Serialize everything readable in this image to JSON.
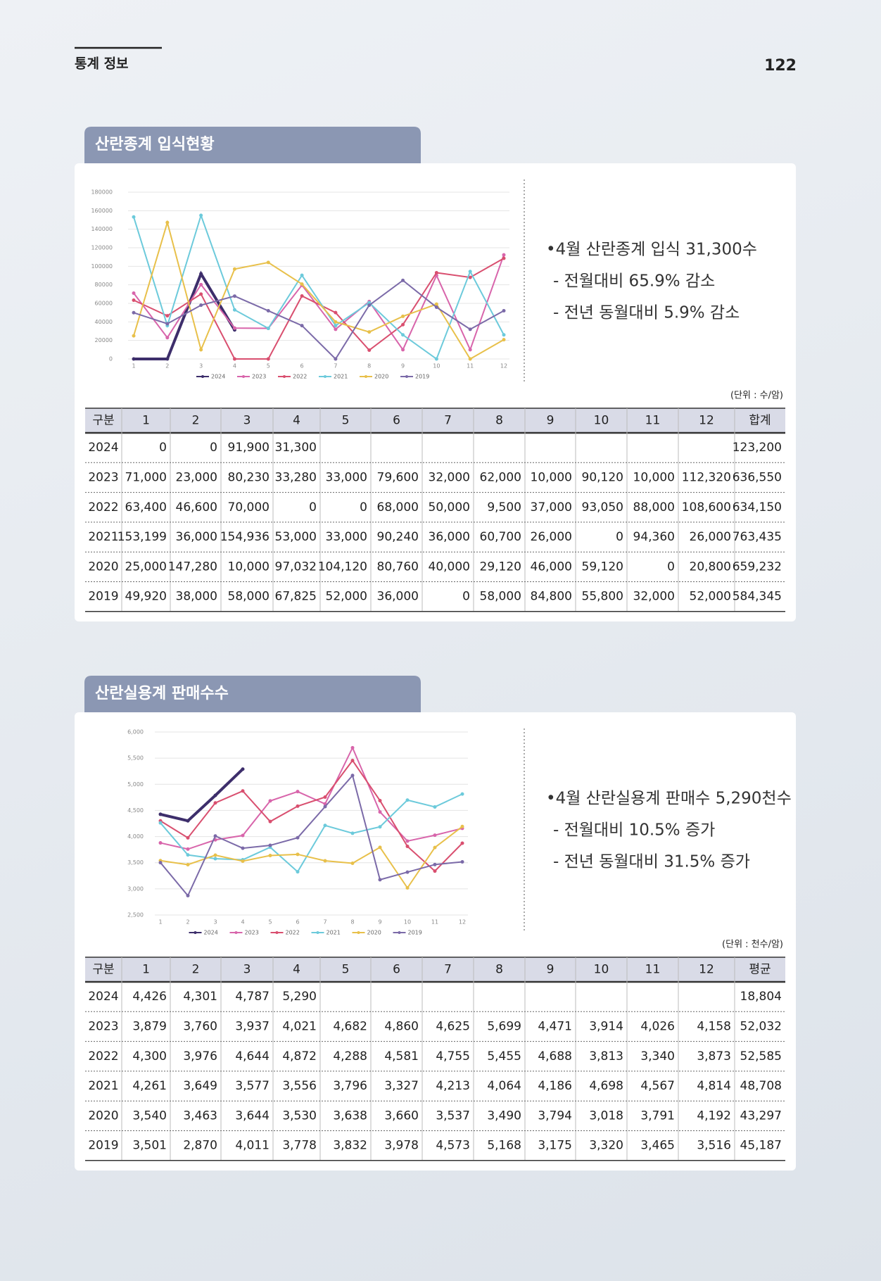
{
  "header": {
    "section": "통계 정보",
    "page": "122"
  },
  "sections": [
    {
      "title": "산란종계 입식현황",
      "bullets": [
        "•4월 산란종계 입식 31,300수",
        "- 전월대비 65.9% 감소",
        "- 전년 동월대비 5.9% 감소"
      ],
      "unit": "(단위 : 수/암)",
      "table": {
        "first_header": "구분",
        "last_header": "합계"
      },
      "chart": {
        "type": "line",
        "categories": [
          "1",
          "2",
          "3",
          "4",
          "5",
          "6",
          "7",
          "8",
          "9",
          "10",
          "11",
          "12"
        ],
        "ylim": [
          0,
          180000
        ],
        "yticks": [
          0,
          20000,
          40000,
          60000,
          80000,
          100000,
          120000,
          140000,
          160000,
          180000
        ],
        "grid": true,
        "series": [
          {
            "name": "2024",
            "color": "#3d2e6b",
            "values": [
              0,
              0,
              91900,
              31300,
              null,
              null,
              null,
              null,
              null,
              null,
              null,
              null
            ],
            "value_labels": [
              "0",
              "0",
              "91,900",
              "31,300",
              null,
              null,
              null,
              null,
              null,
              null,
              null,
              null
            ],
            "total": "123,200"
          },
          {
            "name": "2023",
            "color": "#d865ab",
            "values": [
              71000,
              23000,
              80230,
              33280,
              33000,
              79600,
              32000,
              62000,
              10000,
              90120,
              10000,
              112320
            ],
            "value_labels": [
              "71,000",
              "23,000",
              "80,230",
              "33,280",
              "33,000",
              "79,600",
              "32,000",
              "62,000",
              "10,000",
              "90,120",
              "10,000",
              "112,320"
            ],
            "total": "636,550"
          },
          {
            "name": "2022",
            "color": "#d94f6f",
            "values": [
              63400,
              46600,
              70000,
              0,
              0,
              68000,
              50000,
              9500,
              37000,
              93050,
              88000,
              108600
            ],
            "value_labels": [
              "63,400",
              "46,600",
              "70,000",
              "0",
              "0",
              "68,000",
              "50,000",
              "9,500",
              "37,000",
              "93,050",
              "88,000",
              "108,600"
            ],
            "total": "634,150"
          },
          {
            "name": "2021",
            "color": "#6ccadb",
            "values": [
              153199,
              36000,
              154936,
              53000,
              33000,
              90240,
              36000,
              60700,
              26000,
              0,
              94360,
              26000
            ],
            "value_labels": [
              "153,199",
              "36,000",
              "154,936",
              "53,000",
              "33,000",
              "90,240",
              "36,000",
              "60,700",
              "26,000",
              "0",
              "94,360",
              "26,000"
            ],
            "total": "763,435"
          },
          {
            "name": "2020",
            "color": "#e8c04a",
            "values": [
              25000,
              147280,
              10000,
              97032,
              104120,
              80760,
              40000,
              29120,
              46000,
              59120,
              0,
              20800
            ],
            "value_labels": [
              "25,000",
              "147,280",
              "10,000",
              "97,032",
              "104,120",
              "80,760",
              "40,000",
              "29,120",
              "46,000",
              "59,120",
              "0",
              "20,800"
            ],
            "total": "659,232"
          },
          {
            "name": "2019",
            "color": "#7b6aa8",
            "values": [
              49920,
              38000,
              58000,
              67825,
              52000,
              36000,
              0,
              58000,
              84800,
              55800,
              32000,
              52000
            ],
            "value_labels": [
              "49,920",
              "38,000",
              "58,000",
              "67,825",
              "52,000",
              "36,000",
              "0",
              "58,000",
              "84,800",
              "55,800",
              "32,000",
              "52,000"
            ],
            "total": "584,345"
          }
        ]
      }
    },
    {
      "title": "산란실용계 판매수수",
      "bullets": [
        "•4월 산란실용계 판매수 5,290천수",
        "- 전월대비 10.5% 증가",
        "- 전년 동월대비 31.5% 증가"
      ],
      "unit": "(단위 : 천수/암)",
      "table": {
        "first_header": "구분",
        "last_header": "평균"
      },
      "chart": {
        "type": "line",
        "categories": [
          "1",
          "2",
          "3",
          "4",
          "5",
          "6",
          "7",
          "8",
          "9",
          "10",
          "11",
          "12"
        ],
        "ylim": [
          2500,
          6000
        ],
        "yticks": [
          {
            "value": 2500,
            "label": "2,500"
          },
          {
            "value": 3000,
            "label": "3,000"
          },
          {
            "value": 3500,
            "label": "3,500"
          },
          {
            "value": 4000,
            "label": "4,000"
          },
          {
            "value": 4500,
            "label": "4,500"
          },
          {
            "value": 5000,
            "label": "5,000"
          },
          {
            "value": 5500,
            "label": "5,500"
          },
          {
            "value": 6000,
            "label": "6,000"
          }
        ],
        "grid": true,
        "series": [
          {
            "name": "2024",
            "color": "#3d2e6b",
            "values": [
              4426,
              4301,
              4787,
              5290,
              null,
              null,
              null,
              null,
              null,
              null,
              null,
              null
            ],
            "value_labels": [
              "4,426",
              "4,301",
              "4,787",
              "5,290",
              null,
              null,
              null,
              null,
              null,
              null,
              null,
              null
            ],
            "total": "18,804"
          },
          {
            "name": "2023",
            "color": "#d865ab",
            "values": [
              3879,
              3760,
              3937,
              4021,
              4682,
              4860,
              4625,
              5699,
              4471,
              3914,
              4026,
              4158
            ],
            "value_labels": [
              "3,879",
              "3,760",
              "3,937",
              "4,021",
              "4,682",
              "4,860",
              "4,625",
              "5,699",
              "4,471",
              "3,914",
              "4,026",
              "4,158"
            ],
            "total": "52,032"
          },
          {
            "name": "2022",
            "color": "#d94f6f",
            "values": [
              4300,
              3976,
              4644,
              4872,
              4288,
              4581,
              4755,
              5455,
              4688,
              3813,
              3340,
              3873
            ],
            "value_labels": [
              "4,300",
              "3,976",
              "4,644",
              "4,872",
              "4,288",
              "4,581",
              "4,755",
              "5,455",
              "4,688",
              "3,813",
              "3,340",
              "3,873"
            ],
            "total": "52,585"
          },
          {
            "name": "2021",
            "color": "#6ccadb",
            "values": [
              4261,
              3649,
              3577,
              3556,
              3796,
              3327,
              4213,
              4064,
              4186,
              4698,
              4567,
              4814
            ],
            "value_labels": [
              "4,261",
              "3,649",
              "3,577",
              "3,556",
              "3,796",
              "3,327",
              "4,213",
              "4,064",
              "4,186",
              "4,698",
              "4,567",
              "4,814"
            ],
            "total": "48,708"
          },
          {
            "name": "2020",
            "color": "#e8c04a",
            "values": [
              3540,
              3463,
              3644,
              3530,
              3638,
              3660,
              3537,
              3490,
              3794,
              3018,
              3791,
              4192
            ],
            "value_labels": [
              "3,540",
              "3,463",
              "3,644",
              "3,530",
              "3,638",
              "3,660",
              "3,537",
              "3,490",
              "3,794",
              "3,018",
              "3,791",
              "4,192"
            ],
            "total": "43,297"
          },
          {
            "name": "2019",
            "color": "#7b6aa8",
            "values": [
              3501,
              2870,
              4011,
              3778,
              3832,
              3978,
              4573,
              5168,
              3175,
              3320,
              3465,
              3516
            ],
            "value_labels": [
              "3,501",
              "2,870",
              "4,011",
              "3,778",
              "3,832",
              "3,978",
              "4,573",
              "5,168",
              "3,175",
              "3,320",
              "3,465",
              "3,516"
            ],
            "total": "45,187"
          }
        ]
      }
    }
  ]
}
